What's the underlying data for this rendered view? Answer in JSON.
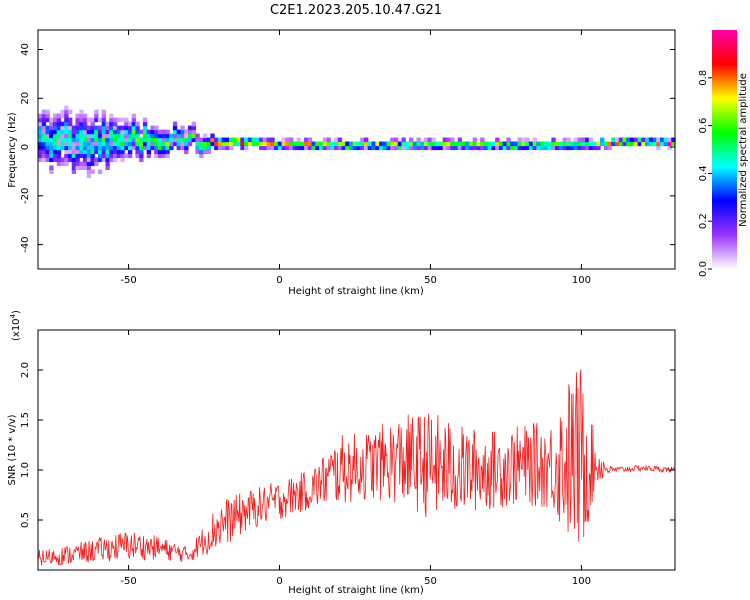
{
  "title": "C2E1.2023.205.10.47.G21",
  "chart_data": [
    {
      "type": "heatmap",
      "xlabel": "Height of straight line (km)",
      "ylabel": "Frequency (Hz)",
      "xlim": [
        -80,
        131
      ],
      "ylim": [
        -50,
        48
      ],
      "x_ticks": [
        -50,
        0,
        50,
        100
      ],
      "y_ticks": [
        -40,
        -20,
        0,
        20,
        40
      ],
      "colorbar": {
        "label": "Normalized spectral amplitude",
        "range": [
          0.0,
          1.0
        ],
        "ticks": [
          0.0,
          0.2,
          0.4,
          0.6,
          0.8
        ],
        "colormap": [
          "#ffffff",
          "#9933ff",
          "#0000ff",
          "#00ffff",
          "#00ff00",
          "#ffff00",
          "#ff0000",
          "#ff00aa"
        ]
      },
      "ridge": {
        "x": [
          -80,
          -70,
          -60,
          -50,
          -40,
          -30,
          -20,
          -10,
          0,
          10,
          20,
          30,
          40,
          50,
          60,
          70,
          80,
          90,
          100,
          110,
          120,
          131
        ],
        "center_hz": [
          3,
          2,
          2,
          4,
          3,
          3,
          2,
          2,
          1,
          1,
          1,
          1,
          1,
          1,
          1,
          1,
          1,
          1,
          1,
          2,
          2,
          2
        ],
        "spread_hz": [
          14,
          16,
          15,
          10,
          8,
          6,
          3,
          2.5,
          2.5,
          2.5,
          2.5,
          2.5,
          2.5,
          2.5,
          2.5,
          2.5,
          2.5,
          2.5,
          3,
          2,
          2,
          2
        ],
        "peak_amplitude": [
          0.45,
          0.45,
          0.5,
          0.5,
          0.55,
          0.55,
          0.7,
          0.8,
          0.65,
          0.7,
          0.65,
          0.65,
          0.6,
          0.6,
          0.6,
          0.65,
          0.65,
          0.6,
          0.55,
          0.75,
          0.8,
          0.85
        ]
      }
    },
    {
      "type": "line",
      "xlabel": "Height of straight line (km)",
      "ylabel": "SNR (10 * v/v)",
      "y_multiplier": "(x10",
      "y_multiplier_exp": "4",
      "y_multiplier_close": ")",
      "xlim": [
        -80,
        131
      ],
      "ylim": [
        0,
        2.4
      ],
      "x_ticks": [
        -50,
        0,
        50,
        100
      ],
      "y_ticks": [
        0.5,
        1.0,
        1.5,
        2.0
      ],
      "series": [
        {
          "color": "#ee2222",
          "x": [
            -80,
            -70,
            -60,
            -50,
            -40,
            -30,
            -25,
            -20,
            -10,
            0,
            10,
            20,
            30,
            40,
            50,
            60,
            70,
            80,
            90,
            95,
            100,
            105,
            110,
            120,
            131
          ],
          "y": [
            0.12,
            0.15,
            0.2,
            0.25,
            0.22,
            0.15,
            0.3,
            0.45,
            0.6,
            0.7,
            0.8,
            1.0,
            1.05,
            1.1,
            1.05,
            1.0,
            1.0,
            1.05,
            1.05,
            1.1,
            1.1,
            1.05,
            1.0,
            1.02,
            1.0
          ],
          "noise": [
            0.08,
            0.1,
            0.12,
            0.15,
            0.12,
            0.08,
            0.15,
            0.25,
            0.2,
            0.2,
            0.2,
            0.35,
            0.35,
            0.45,
            0.55,
            0.45,
            0.4,
            0.4,
            0.45,
            0.8,
            1.0,
            0.2,
            0.03,
            0.03,
            0.03
          ]
        }
      ]
    }
  ]
}
